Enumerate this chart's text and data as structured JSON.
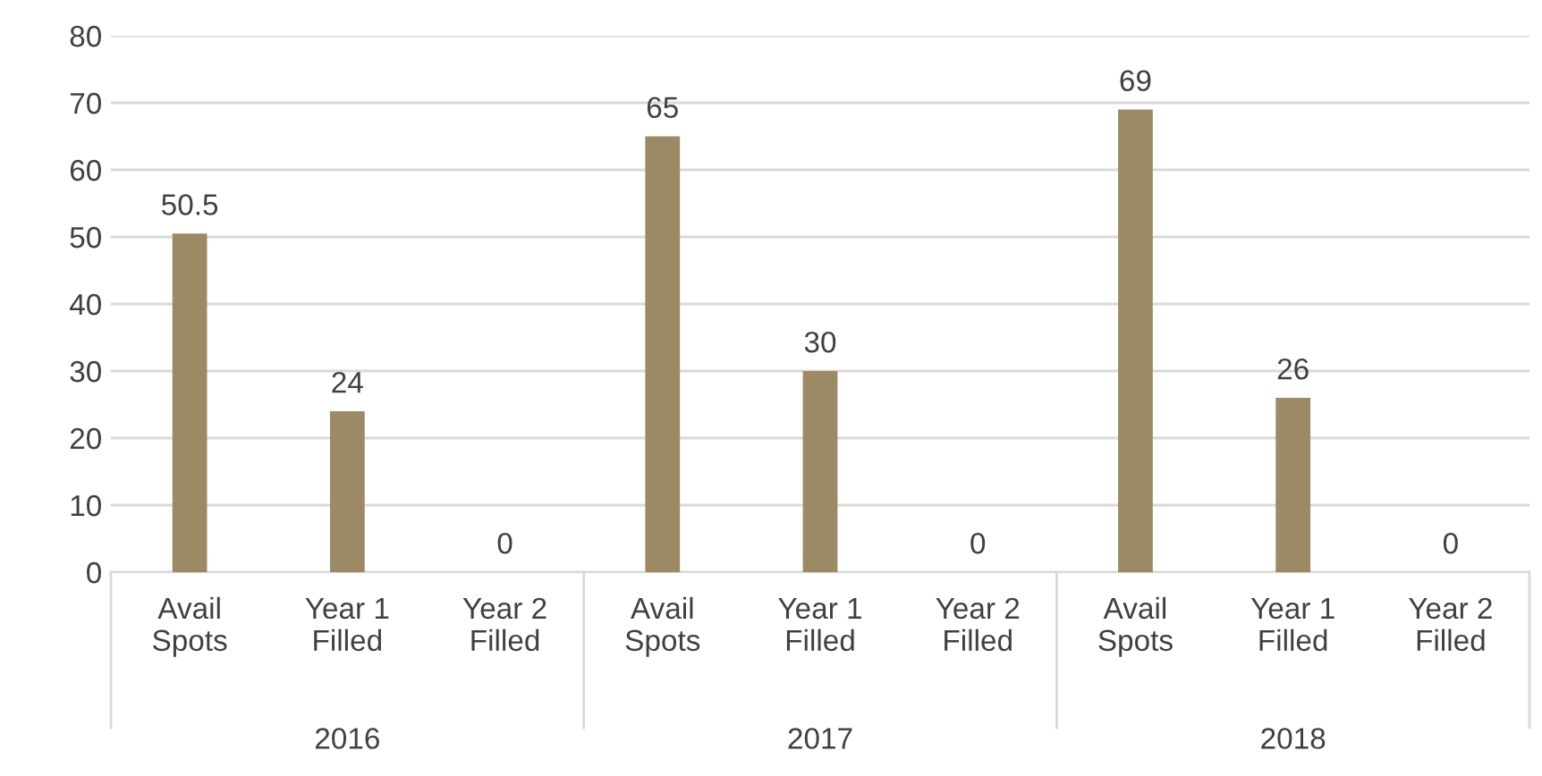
{
  "chart_data": {
    "type": "bar",
    "categories": [
      "Avail\nSpots",
      "Year 1\nFilled",
      "Year 2\nFilled",
      "Avail\nSpots",
      "Year 1\nFilled",
      "Year 2\nFilled",
      "Avail\nSpots",
      "Year 1\nFilled",
      "Year 2\nFilled"
    ],
    "values": [
      50.5,
      24,
      0,
      65,
      30,
      0,
      69,
      26,
      0
    ],
    "color": "#9c8a64",
    "ylim": [
      0,
      80
    ],
    "yticks": [
      0,
      10,
      20,
      30,
      40,
      50,
      60,
      70,
      80
    ],
    "grid": "y",
    "data_labels": true,
    "annotations": [
      "2016",
      "2017",
      "2018"
    ]
  }
}
